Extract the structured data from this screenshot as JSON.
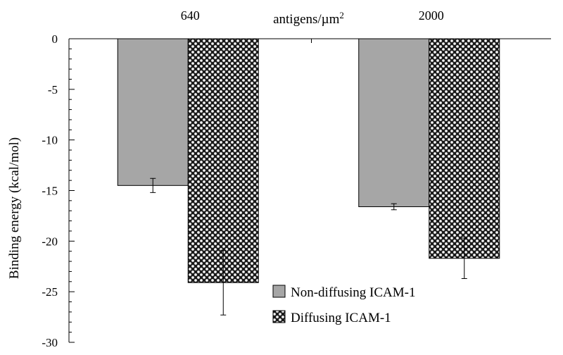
{
  "chart_data": {
    "type": "bar",
    "title": "",
    "xlabel": "antigens/µm",
    "xlabel_superscript": "2",
    "ylabel": "Binding energy (kcal/mol)",
    "categories": [
      "640",
      "2000"
    ],
    "ylim": [
      -30,
      0
    ],
    "y_ticks": [
      0,
      -5,
      -10,
      -15,
      -20,
      -25,
      -30
    ],
    "grid": false,
    "legend_position": "bottom-right",
    "series": [
      {
        "name": "Non-diffusing ICAM-1",
        "values": [
          -14.5,
          -16.6
        ],
        "errors": [
          0.7,
          0.3
        ],
        "fill": "#a6a6a6",
        "pattern": "solid"
      },
      {
        "name": "Diffusing ICAM-1",
        "values": [
          -24.1,
          -21.7
        ],
        "errors": [
          3.2,
          2.0
        ],
        "fill": "#1a1a1a",
        "pattern": "checker-dots"
      }
    ],
    "axis_color": "#000000"
  }
}
